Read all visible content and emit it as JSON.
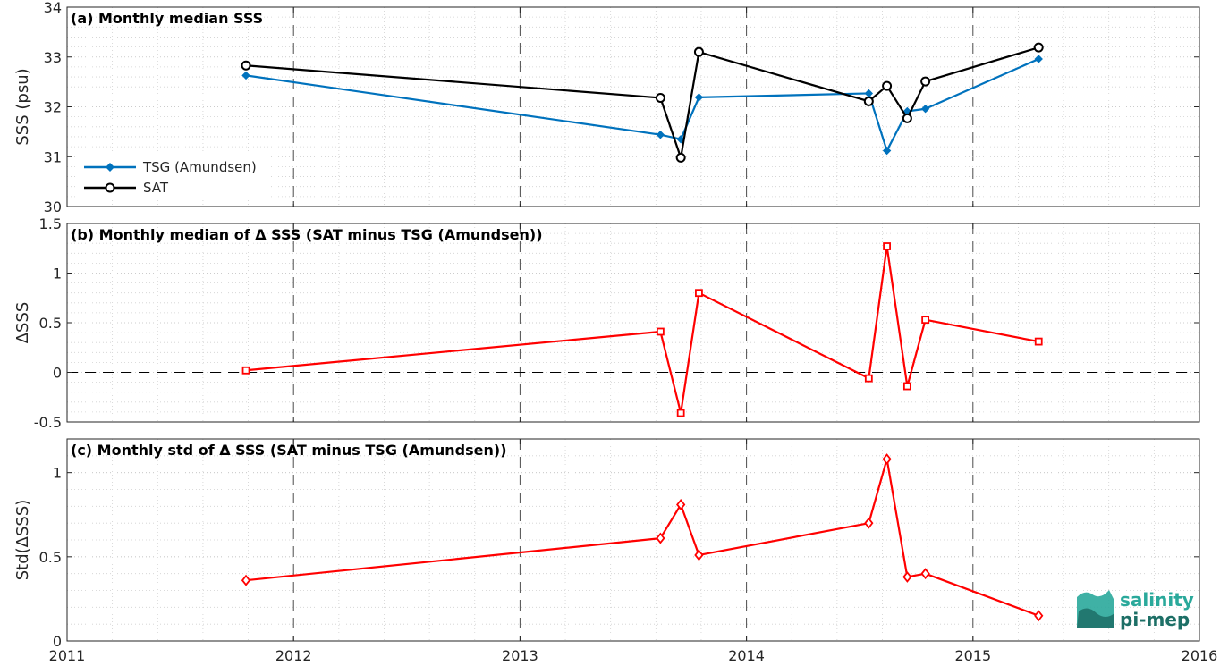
{
  "x_ticks": [
    "2011",
    "2012",
    "2013",
    "2014",
    "2015",
    "2016"
  ],
  "chart_data": [
    {
      "type": "line",
      "title": "(a) Monthly median SSS",
      "ylabel": "SSS (psu)",
      "xlim": [
        2011,
        2016
      ],
      "ylim": [
        30,
        34
      ],
      "yticks": [
        "30",
        "31",
        "32",
        "33",
        "34"
      ],
      "grid": true,
      "legend_position": "bottom-left",
      "series": [
        {
          "name": "TSG (Amundsen)",
          "color": "#0072bd",
          "marker": "filled-diamond",
          "x": [
            2011.79,
            2013.62,
            2013.71,
            2013.79,
            2014.54,
            2014.62,
            2014.71,
            2014.79,
            2015.29
          ],
          "y": [
            32.63,
            31.44,
            31.35,
            32.19,
            32.27,
            31.12,
            31.91,
            31.96,
            32.96
          ]
        },
        {
          "name": "SAT",
          "color": "#000000",
          "marker": "open-circle",
          "x": [
            2011.79,
            2013.62,
            2013.71,
            2013.79,
            2014.54,
            2014.62,
            2014.71,
            2014.79,
            2015.29
          ],
          "y": [
            32.83,
            32.18,
            30.98,
            33.1,
            32.11,
            32.42,
            31.77,
            32.51,
            33.19
          ]
        }
      ]
    },
    {
      "type": "line",
      "title": "(b) Monthly median of Δ SSS (SAT minus TSG (Amundsen))",
      "ylabel": "ΔSSS",
      "xlim": [
        2011,
        2016
      ],
      "ylim": [
        -0.5,
        1.5
      ],
      "yticks": [
        "-0.5",
        "0",
        "0.5",
        "1",
        "1.5"
      ],
      "grid": true,
      "zero_line": true,
      "series": [
        {
          "color": "#ff0000",
          "marker": "open-square",
          "x": [
            2011.79,
            2013.62,
            2013.71,
            2013.79,
            2014.54,
            2014.62,
            2014.71,
            2014.79,
            2015.29
          ],
          "y": [
            0.02,
            0.41,
            -0.41,
            0.8,
            -0.06,
            1.27,
            -0.14,
            0.53,
            0.31
          ]
        }
      ]
    },
    {
      "type": "line",
      "title": "(c) Monthly std of Δ SSS (SAT minus TSG (Amundsen))",
      "ylabel": "Std(ΔSSS)",
      "xlim": [
        2011,
        2016
      ],
      "ylim": [
        0,
        1.2
      ],
      "yticks": [
        "0",
        "0.5",
        "1"
      ],
      "grid": true,
      "series": [
        {
          "color": "#ff0000",
          "marker": "open-diamond",
          "x": [
            2011.79,
            2013.62,
            2013.71,
            2013.79,
            2014.54,
            2014.62,
            2014.71,
            2014.79,
            2015.29
          ],
          "y": [
            0.36,
            0.61,
            0.81,
            0.51,
            0.7,
            1.08,
            0.38,
            0.4,
            0.15
          ]
        }
      ]
    }
  ],
  "logo": {
    "line1": "salinity",
    "line2": "pi-mep"
  }
}
